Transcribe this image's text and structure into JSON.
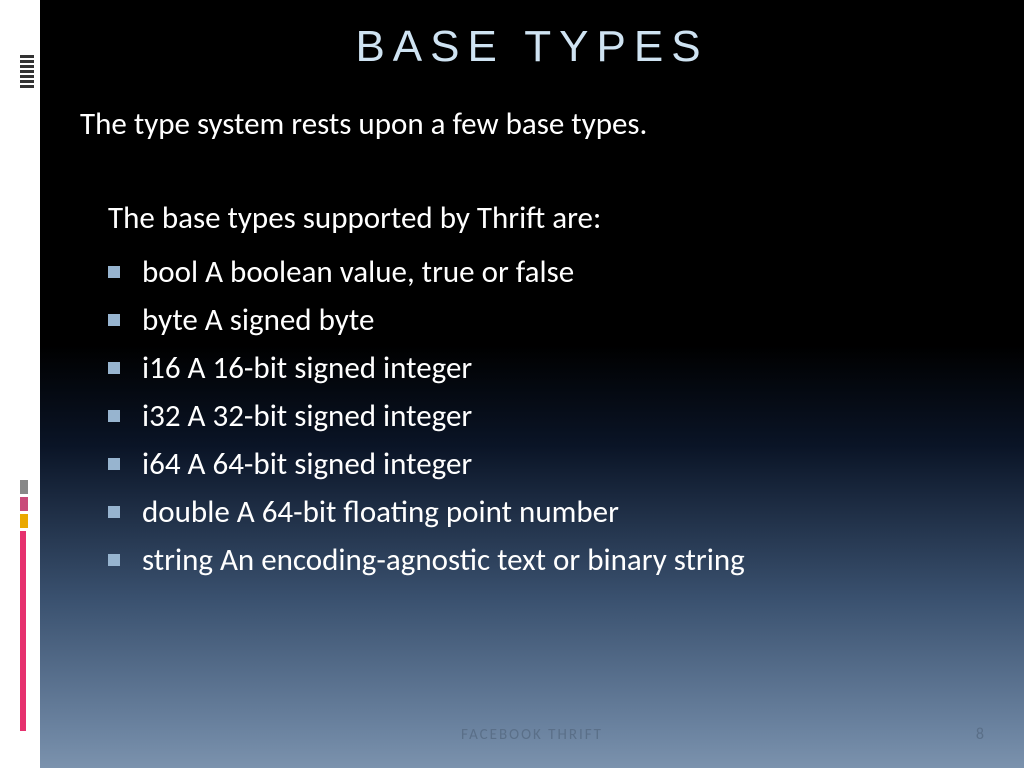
{
  "slide": {
    "title": "BASE  TYPES",
    "intro": "The type system rests upon a few base types.",
    "subintro": "The base types supported by Thrift are:",
    "items": [
      "bool  A boolean value, true or false",
      " byte A signed byte",
      "i16 A 16-bit signed integer",
      "i32 A 32-bit signed integer",
      "i64 A 64-bit signed integer",
      "double A 64-bit floating point number",
      "string An encoding-agnostic text or binary string"
    ],
    "footer": "FACEBOOK THRIFT",
    "page_number": "8"
  },
  "style": {
    "title_color": "#cfe3f2",
    "title_fontsize": 44,
    "title_letter_spacing": 8,
    "body_color": "#ffffff",
    "body_fontsize": 31,
    "bullet_color": "#97b4cf",
    "bullet_size": 12,
    "footer_color": "#5a6f88",
    "footer_fontsize": 15,
    "gradient_stops": [
      "#000000",
      "#000000",
      "#0a1426",
      "#3a516f",
      "#6b83a0",
      "#7b92ad"
    ],
    "accent_colors": {
      "pink": "#e6316e",
      "orange": "#eaa800",
      "mauve": "#c94b7a",
      "gray": "#888888"
    },
    "slide_width": 1024,
    "slide_height": 768,
    "left_margin_white": 40
  }
}
